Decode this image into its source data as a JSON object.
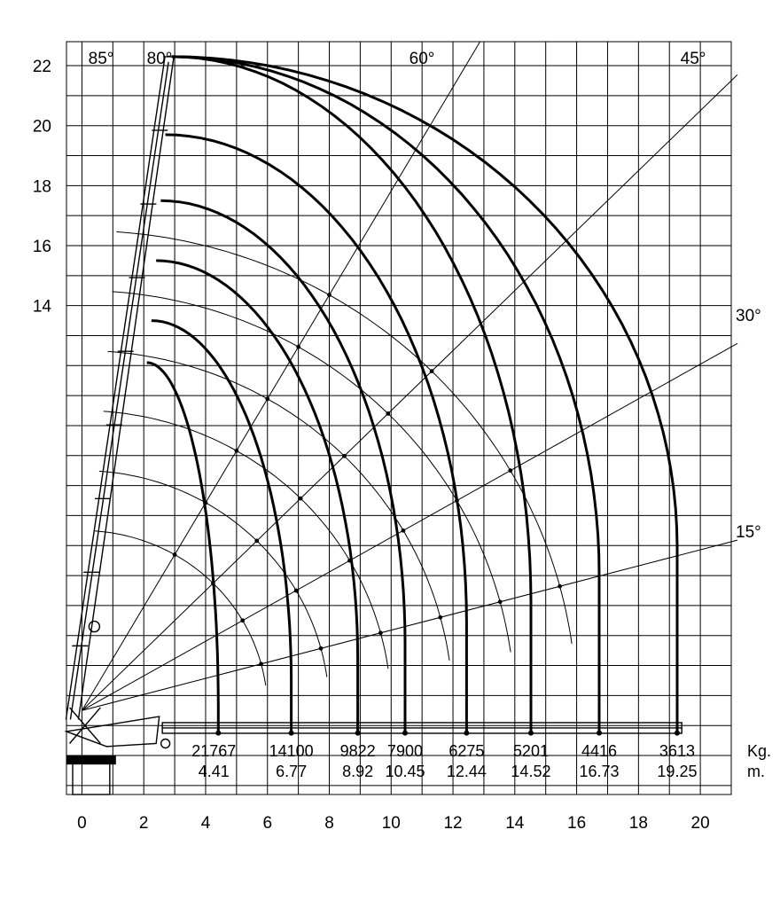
{
  "chart_data": {
    "type": "crane-load-chart",
    "x_ticks": [
      "0",
      "2",
      "4",
      "6",
      "8",
      "10",
      "12",
      "14",
      "16",
      "18",
      "20"
    ],
    "y_ticks": [
      "14",
      "16",
      "18",
      "20",
      "22"
    ],
    "xlim": [
      -0.5,
      21
    ],
    "ylim": [
      -2.3,
      22.8
    ],
    "grid": true,
    "angles": [
      {
        "label": "85°",
        "deg": 85
      },
      {
        "label": "80°",
        "deg": 80
      },
      {
        "label": "60°",
        "deg": 60
      },
      {
        "label": "45°",
        "deg": 45
      },
      {
        "label": "30°",
        "deg": 30
      },
      {
        "label": "15°",
        "deg": 15
      }
    ],
    "unit_kg": "Kg.",
    "unit_m": "m.",
    "load_points": [
      {
        "kg": "21767",
        "m": "4.41",
        "reach": 4.41,
        "tip_height": 12.1
      },
      {
        "kg": "14100",
        "m": "6.77",
        "reach": 6.77,
        "tip_height": 13.5
      },
      {
        "kg": "9822",
        "m": "8.92",
        "reach": 8.92,
        "tip_height": 15.5
      },
      {
        "kg": "7900",
        "m": "10.45",
        "reach": 10.45,
        "tip_height": 17.5
      },
      {
        "kg": "6275",
        "m": "12.44",
        "reach": 12.44,
        "tip_height": 19.7
      },
      {
        "kg": "5201",
        "m": "14.52",
        "reach": 14.52,
        "tip_height": 22.3
      },
      {
        "kg": "4416",
        "m": "16.73",
        "reach": 16.73,
        "tip_height": 22.3
      },
      {
        "kg": "3613",
        "m": "19.25",
        "reach": 19.25,
        "tip_height": 22.3
      }
    ],
    "arc_radii": [
      6,
      8,
      10,
      12,
      14,
      16
    ],
    "colors": {
      "ink": "#000000",
      "background": "#ffffff"
    }
  }
}
